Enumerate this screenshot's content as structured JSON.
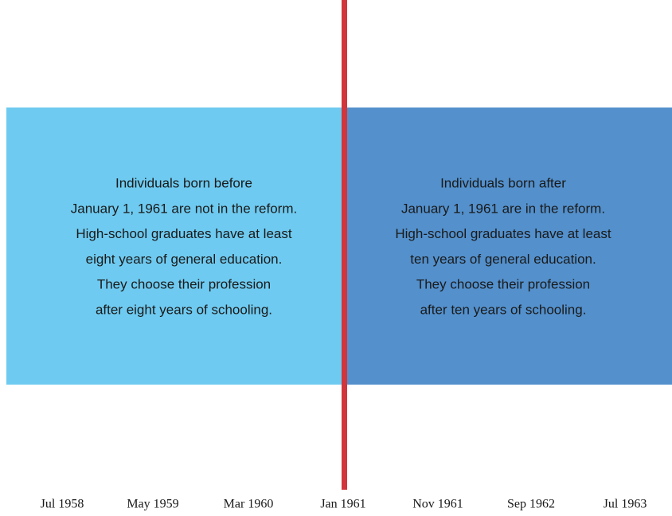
{
  "left_panel": {
    "lines": [
      "Individuals born before",
      "January 1, 1961 are not in the reform.",
      "High-school graduates have at least",
      "eight years of general education.",
      "They choose their profession",
      "after eight years of schooling."
    ]
  },
  "right_panel": {
    "lines": [
      "Individuals born after",
      "January 1, 1961 are in the reform.",
      "High-school graduates have at least",
      "ten years of general education.",
      "They choose their profession",
      "after ten years of schooling."
    ]
  },
  "timeline": {
    "ticks": [
      "Jul 1958",
      "May 1959",
      "Mar 1960",
      "Jan 1961",
      "Nov 1961",
      "Sep 1962",
      "Jul 1963"
    ]
  }
}
